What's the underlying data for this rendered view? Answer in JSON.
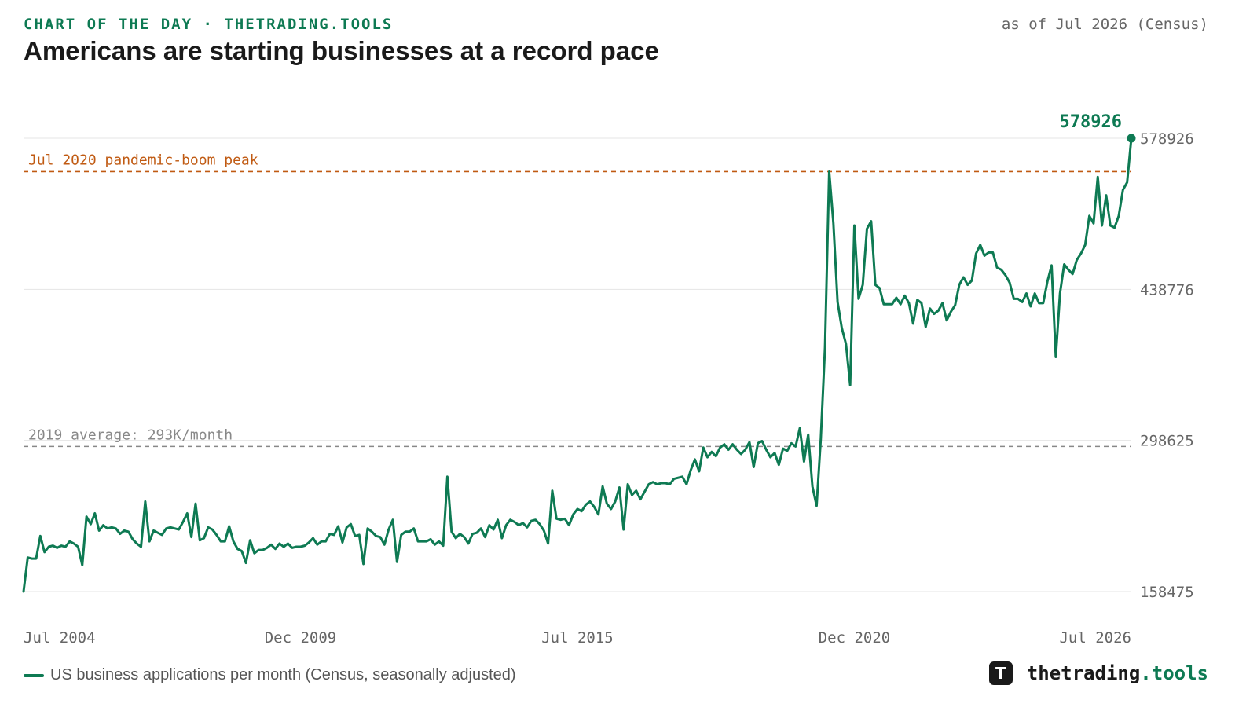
{
  "header": {
    "kicker": "CHART OF THE DAY · THETRADING.TOOLS",
    "title": "Americans are starting businesses at a record pace",
    "as_of": "as of Jul 2026 (Census)"
  },
  "footer": {
    "legend_label": "US business applications per month (Census, seasonally adjusted)",
    "brand_logo": "T",
    "brand_name": "thetrading",
    "brand_tld": ".tools",
    "brand_icon": "t-logo-icon"
  },
  "colors": {
    "series": "#0e7a53",
    "peak_line": "#c05a12",
    "avg_line": "#888888",
    "grid": "#e5e5e5",
    "axis_text": "#666666"
  },
  "chart_data": {
    "type": "line",
    "x_range": [
      "Jul 2004",
      "Jul 2026"
    ],
    "x_tick_labels": [
      "Jul 2004",
      "Dec 2009",
      "Jul 2015",
      "Dec 2020",
      "Jul 2026"
    ],
    "y_ticks": [
      158475,
      298625,
      438776,
      578926
    ],
    "ylim": [
      158475,
      578926
    ],
    "grid": "horizontal",
    "series": [
      {
        "name": "US business applications per month (Census, seasonally adjusted)",
        "start": "Jul 2004",
        "frequency": "monthly",
        "values": [
          158475,
          190000,
          189000,
          189000,
          210000,
          195000,
          200000,
          201000,
          199000,
          201000,
          200000,
          205000,
          203000,
          200000,
          183000,
          228000,
          221000,
          231000,
          215000,
          220000,
          217000,
          218000,
          217000,
          212000,
          215000,
          214000,
          207000,
          203000,
          200000,
          242000,
          205000,
          215000,
          213000,
          211000,
          217000,
          218000,
          217000,
          216000,
          223000,
          231000,
          209000,
          240000,
          206000,
          208000,
          218000,
          216000,
          211000,
          205000,
          205000,
          219000,
          205000,
          198000,
          196000,
          185000,
          206000,
          194000,
          197000,
          197000,
          199000,
          202000,
          198000,
          203000,
          200000,
          203000,
          199000,
          200000,
          200000,
          201000,
          204000,
          208000,
          202000,
          205000,
          205000,
          212000,
          211000,
          219000,
          204000,
          218000,
          221000,
          210000,
          211000,
          184000,
          217000,
          214000,
          210000,
          209000,
          202000,
          216000,
          225000,
          186000,
          211000,
          214000,
          214000,
          217000,
          205000,
          205000,
          205000,
          207000,
          202000,
          205000,
          201000,
          265000,
          214000,
          208000,
          212000,
          209000,
          203000,
          212000,
          213000,
          217000,
          209000,
          220000,
          216000,
          225000,
          208000,
          220000,
          225000,
          223000,
          220000,
          222000,
          218000,
          224000,
          225000,
          221000,
          215000,
          203000,
          252000,
          226000,
          225000,
          226000,
          220000,
          230000,
          235000,
          233000,
          239000,
          242000,
          237000,
          230000,
          256000,
          240000,
          235000,
          242000,
          255000,
          216000,
          258000,
          248000,
          252000,
          244000,
          251000,
          258000,
          260000,
          258000,
          259000,
          259000,
          258000,
          263000,
          264000,
          265000,
          258000,
          271000,
          281000,
          270000,
          292000,
          283000,
          288000,
          284000,
          292000,
          295000,
          290000,
          295000,
          290000,
          286000,
          290000,
          297000,
          274000,
          296000,
          298000,
          290000,
          283000,
          287000,
          276000,
          291000,
          289000,
          296000,
          293000,
          310000,
          279000,
          304000,
          256000,
          238000,
          300000,
          385000,
          548000,
          500000,
          427000,
          403000,
          388000,
          350000,
          498000,
          430000,
          443000,
          495000,
          502000,
          443000,
          440000,
          425000,
          425000,
          425000,
          431000,
          425000,
          433000,
          426000,
          407000,
          429000,
          426000,
          404000,
          421000,
          416000,
          419000,
          426000,
          410000,
          418000,
          424000,
          443000,
          450000,
          443000,
          447000,
          472000,
          480000,
          470000,
          473000,
          473000,
          459000,
          457000,
          452000,
          445000,
          430000,
          430000,
          427000,
          435000,
          423000,
          435000,
          426000,
          426000,
          446000,
          461000,
          376000,
          435000,
          462000,
          457000,
          453000,
          466000,
          472000,
          480000,
          507000,
          500000,
          543000,
          498000,
          526000,
          498000,
          496000,
          507000,
          531000,
          538000,
          578926
        ]
      }
    ],
    "reference_lines": [
      {
        "label": "Jul 2020 pandemic-boom peak",
        "value": 548000
      },
      {
        "label": "2019 average: 293K/month",
        "value": 293000
      }
    ],
    "last_value_label": "578926"
  }
}
